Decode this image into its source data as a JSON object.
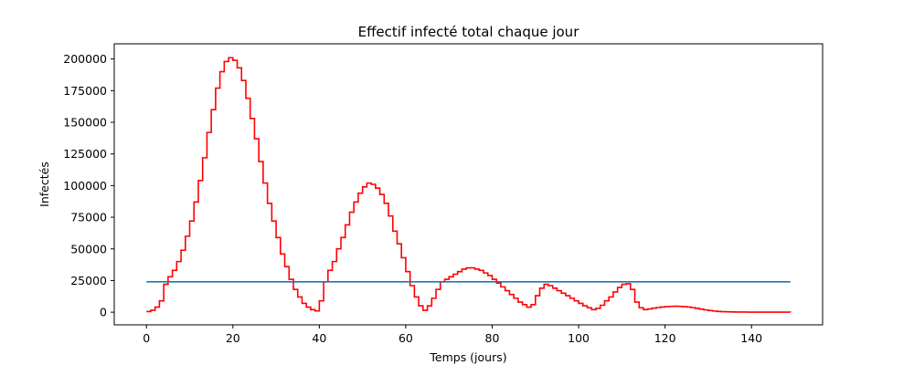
{
  "chart_data": {
    "type": "line",
    "title": "Effectif infecté total chaque jour",
    "xlabel": "Temps (jours)",
    "ylabel": "Infectés",
    "xlim": [
      -7.45,
      156.45
    ],
    "ylim": [
      -10000,
      212000
    ],
    "xticks": [
      0,
      20,
      40,
      60,
      80,
      100,
      120,
      140
    ],
    "yticks": [
      0,
      25000,
      50000,
      75000,
      100000,
      125000,
      150000,
      175000,
      200000
    ],
    "xtick_labels": [
      "0",
      "20",
      "40",
      "60",
      "80",
      "100",
      "120",
      "140"
    ],
    "ytick_labels": [
      "0",
      "25000",
      "50000",
      "75000",
      "100000",
      "125000",
      "150000",
      "175000",
      "200000"
    ],
    "grid": false,
    "colors": {
      "infected": "#ff0000",
      "threshold": "#1f77b4"
    },
    "series": [
      {
        "key": "infected",
        "style": "step",
        "x": [
          0,
          1,
          2,
          3,
          4,
          5,
          6,
          7,
          8,
          9,
          10,
          11,
          12,
          13,
          14,
          15,
          16,
          17,
          18,
          19,
          20,
          21,
          22,
          23,
          24,
          25,
          26,
          27,
          28,
          29,
          30,
          31,
          32,
          33,
          34,
          35,
          36,
          37,
          38,
          39,
          40,
          41,
          42,
          43,
          44,
          45,
          46,
          47,
          48,
          49,
          50,
          51,
          52,
          53,
          54,
          55,
          56,
          57,
          58,
          59,
          60,
          61,
          62,
          63,
          64,
          65,
          66,
          67,
          68,
          69,
          70,
          71,
          72,
          73,
          74,
          75,
          76,
          77,
          78,
          79,
          80,
          81,
          82,
          83,
          84,
          85,
          86,
          87,
          88,
          89,
          90,
          91,
          92,
          93,
          94,
          95,
          96,
          97,
          98,
          99,
          100,
          101,
          102,
          103,
          104,
          105,
          106,
          107,
          108,
          109,
          110,
          111,
          112,
          113,
          114,
          115,
          116,
          117,
          118,
          119,
          120,
          121,
          122,
          123,
          124,
          125,
          126,
          127,
          128,
          129,
          130,
          131,
          132,
          133,
          134,
          135,
          136,
          137,
          138,
          139,
          140,
          141,
          142,
          143,
          144,
          145,
          146,
          147,
          148,
          149
        ],
        "y": [
          500,
          1500,
          4000,
          9000,
          22000,
          28000,
          33000,
          40000,
          49000,
          60000,
          72000,
          87000,
          104000,
          122000,
          142000,
          160000,
          177000,
          190000,
          198000,
          201000,
          199000,
          193000,
          183000,
          169000,
          153000,
          137000,
          119000,
          102000,
          86000,
          72000,
          59000,
          46000,
          36000,
          26000,
          18000,
          12000,
          7000,
          4000,
          2000,
          1000,
          9000,
          24000,
          33000,
          40000,
          50000,
          59000,
          69000,
          79000,
          87000,
          94000,
          99000,
          102000,
          101000,
          98000,
          93000,
          86000,
          76000,
          64000,
          54000,
          43000,
          32000,
          21000,
          12000,
          5000,
          1500,
          5000,
          11000,
          18000,
          24000,
          26000,
          28000,
          30000,
          32000,
          34000,
          35000,
          35000,
          34000,
          33000,
          31000,
          29000,
          26000,
          23000,
          20000,
          17000,
          14000,
          11000,
          8000,
          6000,
          4000,
          6000,
          13000,
          19000,
          22000,
          21000,
          19000,
          17000,
          15000,
          13000,
          11000,
          9000,
          7000,
          5000,
          3500,
          2000,
          3000,
          5500,
          9000,
          12000,
          16000,
          19500,
          22000,
          22500,
          18000,
          8000,
          3500,
          2000,
          2600,
          3200,
          3700,
          4100,
          4400,
          4600,
          4700,
          4600,
          4400,
          4100,
          3600,
          3000,
          2400,
          1800,
          1300,
          900,
          600,
          400,
          300,
          200,
          150,
          120,
          100,
          80,
          70,
          60,
          50,
          45,
          40,
          35,
          30,
          25,
          20,
          15
        ],
        "x_end": 149
      },
      {
        "key": "threshold",
        "style": "line",
        "x": [
          0,
          149
        ],
        "y": [
          24000,
          24000
        ]
      }
    ]
  }
}
